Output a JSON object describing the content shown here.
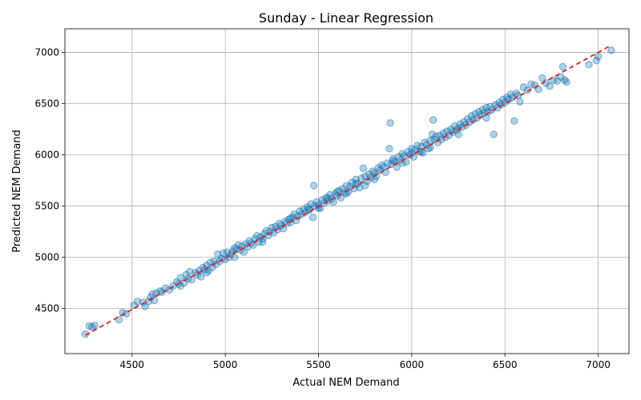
{
  "chart_data": {
    "type": "scatter",
    "title": "Sunday - Linear Regression",
    "xlabel": "Actual NEM Demand",
    "ylabel": "Predicted NEM Demand",
    "xlim": [
      4140,
      7165
    ],
    "ylim": [
      4060,
      7230
    ],
    "xticks": [
      4500,
      5000,
      5500,
      6000,
      6500,
      7000
    ],
    "yticks": [
      4500,
      5000,
      5500,
      6000,
      6500,
      7000
    ],
    "grid": true,
    "colors": {
      "point_fill": "#1f77b4",
      "point_fill_opacity": 0.35,
      "fit_line": "#d62728"
    },
    "fit_line": {
      "x": [
        4250,
        7060
      ],
      "y": [
        4240,
        7060
      ],
      "style": "dashed"
    },
    "points": [
      [
        4250,
        4250
      ],
      [
        4270,
        4330
      ],
      [
        4285,
        4320
      ],
      [
        4300,
        4335
      ],
      [
        4430,
        4390
      ],
      [
        4450,
        4460
      ],
      [
        4470,
        4450
      ],
      [
        4510,
        4530
      ],
      [
        4530,
        4570
      ],
      [
        4560,
        4560
      ],
      [
        4570,
        4520
      ],
      [
        4590,
        4570
      ],
      [
        4600,
        4610
      ],
      [
        4610,
        4640
      ],
      [
        4620,
        4580
      ],
      [
        4630,
        4650
      ],
      [
        4650,
        4670
      ],
      [
        4660,
        4660
      ],
      [
        4680,
        4700
      ],
      [
        4700,
        4680
      ],
      [
        4720,
        4720
      ],
      [
        4740,
        4760
      ],
      [
        4750,
        4740
      ],
      [
        4760,
        4800
      ],
      [
        4780,
        4750
      ],
      [
        4790,
        4830
      ],
      [
        4800,
        4790
      ],
      [
        4810,
        4860
      ],
      [
        4820,
        4780
      ],
      [
        4840,
        4850
      ],
      [
        4850,
        4830
      ],
      [
        4860,
        4870
      ],
      [
        4870,
        4810
      ],
      [
        4880,
        4900
      ],
      [
        4890,
        4880
      ],
      [
        4900,
        4920
      ],
      [
        4910,
        4870
      ],
      [
        4920,
        4950
      ],
      [
        4930,
        4900
      ],
      [
        4940,
        4960
      ],
      [
        4950,
        4930
      ],
      [
        4960,
        5030
      ],
      [
        4970,
        4960
      ],
      [
        4980,
        4990
      ],
      [
        4990,
        5040
      ],
      [
        5000,
        4980
      ],
      [
        5010,
        5050
      ],
      [
        5020,
        5000
      ],
      [
        5030,
        5030
      ],
      [
        5040,
        5060
      ],
      [
        5050,
        5000
      ],
      [
        5060,
        5080
      ],
      [
        5070,
        5120
      ],
      [
        5080,
        5070
      ],
      [
        5090,
        5110
      ],
      [
        5100,
        5050
      ],
      [
        5110,
        5130
      ],
      [
        5120,
        5100
      ],
      [
        5130,
        5160
      ],
      [
        5140,
        5140
      ],
      [
        5150,
        5120
      ],
      [
        5160,
        5180
      ],
      [
        5170,
        5210
      ],
      [
        5180,
        5150
      ],
      [
        5190,
        5200
      ],
      [
        5200,
        5180
      ],
      [
        5210,
        5230
      ],
      [
        5220,
        5260
      ],
      [
        5230,
        5210
      ],
      [
        5240,
        5250
      ],
      [
        5250,
        5290
      ],
      [
        5260,
        5240
      ],
      [
        5270,
        5300
      ],
      [
        5280,
        5270
      ],
      [
        5290,
        5330
      ],
      [
        5300,
        5310
      ],
      [
        5310,
        5280
      ],
      [
        5320,
        5350
      ],
      [
        5330,
        5330
      ],
      [
        5340,
        5370
      ],
      [
        5350,
        5340
      ],
      [
        5360,
        5390
      ],
      [
        5370,
        5420
      ],
      [
        5380,
        5360
      ],
      [
        5390,
        5400
      ],
      [
        5400,
        5450
      ],
      [
        5410,
        5420
      ],
      [
        5420,
        5470
      ],
      [
        5430,
        5440
      ],
      [
        5440,
        5490
      ],
      [
        5450,
        5460
      ],
      [
        5460,
        5520
      ],
      [
        5470,
        5390
      ],
      [
        5475,
        5700
      ],
      [
        5480,
        5500
      ],
      [
        5490,
        5540
      ],
      [
        5500,
        5510
      ],
      [
        5510,
        5480
      ],
      [
        5520,
        5560
      ],
      [
        5530,
        5530
      ],
      [
        5540,
        5580
      ],
      [
        5550,
        5550
      ],
      [
        5560,
        5610
      ],
      [
        5570,
        5570
      ],
      [
        5580,
        5540
      ],
      [
        5590,
        5620
      ],
      [
        5600,
        5600
      ],
      [
        5610,
        5650
      ],
      [
        5620,
        5580
      ],
      [
        5630,
        5670
      ],
      [
        5640,
        5630
      ],
      [
        5650,
        5700
      ],
      [
        5660,
        5640
      ],
      [
        5670,
        5690
      ],
      [
        5680,
        5730
      ],
      [
        5690,
        5670
      ],
      [
        5700,
        5760
      ],
      [
        5710,
        5720
      ],
      [
        5720,
        5680
      ],
      [
        5730,
        5770
      ],
      [
        5740,
        5870
      ],
      [
        5750,
        5790
      ],
      [
        5760,
        5740
      ],
      [
        5770,
        5810
      ],
      [
        5780,
        5780
      ],
      [
        5790,
        5840
      ],
      [
        5800,
        5820
      ],
      [
        5810,
        5790
      ],
      [
        5820,
        5870
      ],
      [
        5830,
        5850
      ],
      [
        5840,
        5900
      ],
      [
        5850,
        5880
      ],
      [
        5860,
        5830
      ],
      [
        5870,
        5920
      ],
      [
        5880,
        6060
      ],
      [
        5885,
        6310
      ],
      [
        5890,
        5910
      ],
      [
        5900,
        5960
      ],
      [
        5910,
        5930
      ],
      [
        5920,
        5880
      ],
      [
        5930,
        5980
      ],
      [
        5940,
        5950
      ],
      [
        5950,
        6010
      ],
      [
        5960,
        5990
      ],
      [
        5970,
        5930
      ],
      [
        5980,
        6030
      ],
      [
        5990,
        6000
      ],
      [
        6000,
        6060
      ],
      [
        6010,
        5980
      ],
      [
        6020,
        6050
      ],
      [
        6030,
        6090
      ],
      [
        6040,
        6030
      ],
      [
        6050,
        6080
      ],
      [
        6060,
        6020
      ],
      [
        6070,
        6120
      ],
      [
        6080,
        6100
      ],
      [
        6090,
        6060
      ],
      [
        6100,
        6140
      ],
      [
        6110,
        6200
      ],
      [
        6115,
        6340
      ],
      [
        6120,
        6150
      ],
      [
        6130,
        6180
      ],
      [
        6140,
        6120
      ],
      [
        6150,
        6190
      ],
      [
        6160,
        6150
      ],
      [
        6170,
        6210
      ],
      [
        6180,
        6170
      ],
      [
        6190,
        6230
      ],
      [
        6200,
        6190
      ],
      [
        6210,
        6250
      ],
      [
        6220,
        6220
      ],
      [
        6230,
        6280
      ],
      [
        6240,
        6240
      ],
      [
        6250,
        6200
      ],
      [
        6260,
        6300
      ],
      [
        6270,
        6270
      ],
      [
        6280,
        6320
      ],
      [
        6290,
        6290
      ],
      [
        6300,
        6350
      ],
      [
        6310,
        6320
      ],
      [
        6320,
        6380
      ],
      [
        6330,
        6340
      ],
      [
        6340,
        6400
      ],
      [
        6350,
        6360
      ],
      [
        6360,
        6420
      ],
      [
        6370,
        6390
      ],
      [
        6380,
        6440
      ],
      [
        6390,
        6410
      ],
      [
        6400,
        6460
      ],
      [
        6410,
        6420
      ],
      [
        6420,
        6470
      ],
      [
        6430,
        6440
      ],
      [
        6440,
        6200
      ],
      [
        6450,
        6490
      ],
      [
        6460,
        6460
      ],
      [
        6470,
        6510
      ],
      [
        6480,
        6490
      ],
      [
        6490,
        6540
      ],
      [
        6500,
        6510
      ],
      [
        6510,
        6560
      ],
      [
        6520,
        6540
      ],
      [
        6530,
        6590
      ],
      [
        6540,
        6560
      ],
      [
        6550,
        6330
      ],
      [
        6560,
        6600
      ],
      [
        6570,
        6580
      ],
      [
        6580,
        6520
      ],
      [
        6600,
        6660
      ],
      [
        6620,
        6630
      ],
      [
        6640,
        6690
      ],
      [
        6660,
        6680
      ],
      [
        6680,
        6640
      ],
      [
        6700,
        6750
      ],
      [
        6720,
        6700
      ],
      [
        6740,
        6670
      ],
      [
        6760,
        6730
      ],
      [
        6780,
        6720
      ],
      [
        6800,
        6760
      ],
      [
        6810,
        6860
      ],
      [
        6820,
        6730
      ],
      [
        6830,
        6710
      ],
      [
        6950,
        6880
      ],
      [
        6990,
        6920
      ],
      [
        7000,
        6960
      ],
      [
        7070,
        7020
      ],
      [
        4760,
        4720
      ],
      [
        4900,
        4850
      ],
      [
        5050,
        5090
      ],
      [
        5200,
        5150
      ],
      [
        5350,
        5380
      ],
      [
        5500,
        5480
      ],
      [
        5650,
        5620
      ],
      [
        5800,
        5760
      ],
      [
        5950,
        5920
      ],
      [
        6100,
        6070
      ],
      [
        6250,
        6260
      ],
      [
        6400,
        6360
      ],
      [
        5600,
        5640
      ],
      [
        5700,
        5720
      ],
      [
        5750,
        5700
      ],
      [
        5900,
        5940
      ],
      [
        6000,
        6020
      ],
      [
        6050,
        6030
      ],
      [
        5550,
        5580
      ],
      [
        5450,
        5470
      ]
    ]
  }
}
